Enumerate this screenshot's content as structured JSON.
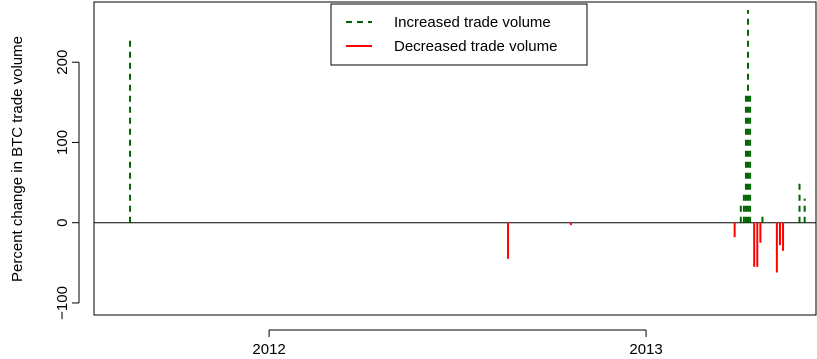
{
  "chart_data": {
    "type": "bar",
    "xlabel": "",
    "ylabel": "Percent change in BTC trade volume",
    "ylim": [
      -115,
      275
    ],
    "xlim": [
      "2011-07-15",
      "2013-06-15"
    ],
    "y_ticks": [
      -100,
      0,
      100,
      200
    ],
    "y_tick_labels": [
      "−100",
      "0",
      "100",
      "200"
    ],
    "x_ticks": [
      {
        "date": "2012-01-01",
        "label": "2012"
      },
      {
        "date": "2013-01-01",
        "label": "2013"
      }
    ],
    "zero_line": true,
    "grid": false,
    "legend": {
      "position": "top-center",
      "entries": [
        {
          "label": "Increased trade volume",
          "color": "#006400",
          "style": "dashed"
        },
        {
          "label": "Decreased trade volume",
          "color": "#ff0000",
          "style": "solid"
        }
      ]
    },
    "series": [
      {
        "name": "Increased trade volume",
        "color": "#006400",
        "points": [
          {
            "x": "2011-08-19",
            "y": 227
          },
          {
            "x": "2013-04-03",
            "y": 22
          },
          {
            "x": "2013-04-06",
            "y": 35
          },
          {
            "x": "2013-04-08",
            "y": 160
          },
          {
            "x": "2013-04-10",
            "y": 265
          },
          {
            "x": "2013-04-12",
            "y": 160
          },
          {
            "x": "2013-04-24",
            "y": 8
          },
          {
            "x": "2013-05-30",
            "y": 53
          },
          {
            "x": "2013-06-04",
            "y": 30
          }
        ]
      },
      {
        "name": "Decreased trade volume",
        "color": "#ff0000",
        "points": [
          {
            "x": "2012-08-20",
            "y": -45
          },
          {
            "x": "2012-10-20",
            "y": -3
          },
          {
            "x": "2013-03-28",
            "y": -18
          },
          {
            "x": "2013-04-16",
            "y": -55
          },
          {
            "x": "2013-04-19",
            "y": -55
          },
          {
            "x": "2013-04-22",
            "y": -25
          },
          {
            "x": "2013-05-08",
            "y": -62
          },
          {
            "x": "2013-05-11",
            "y": -28
          },
          {
            "x": "2013-05-14",
            "y": -35
          }
        ]
      }
    ]
  }
}
